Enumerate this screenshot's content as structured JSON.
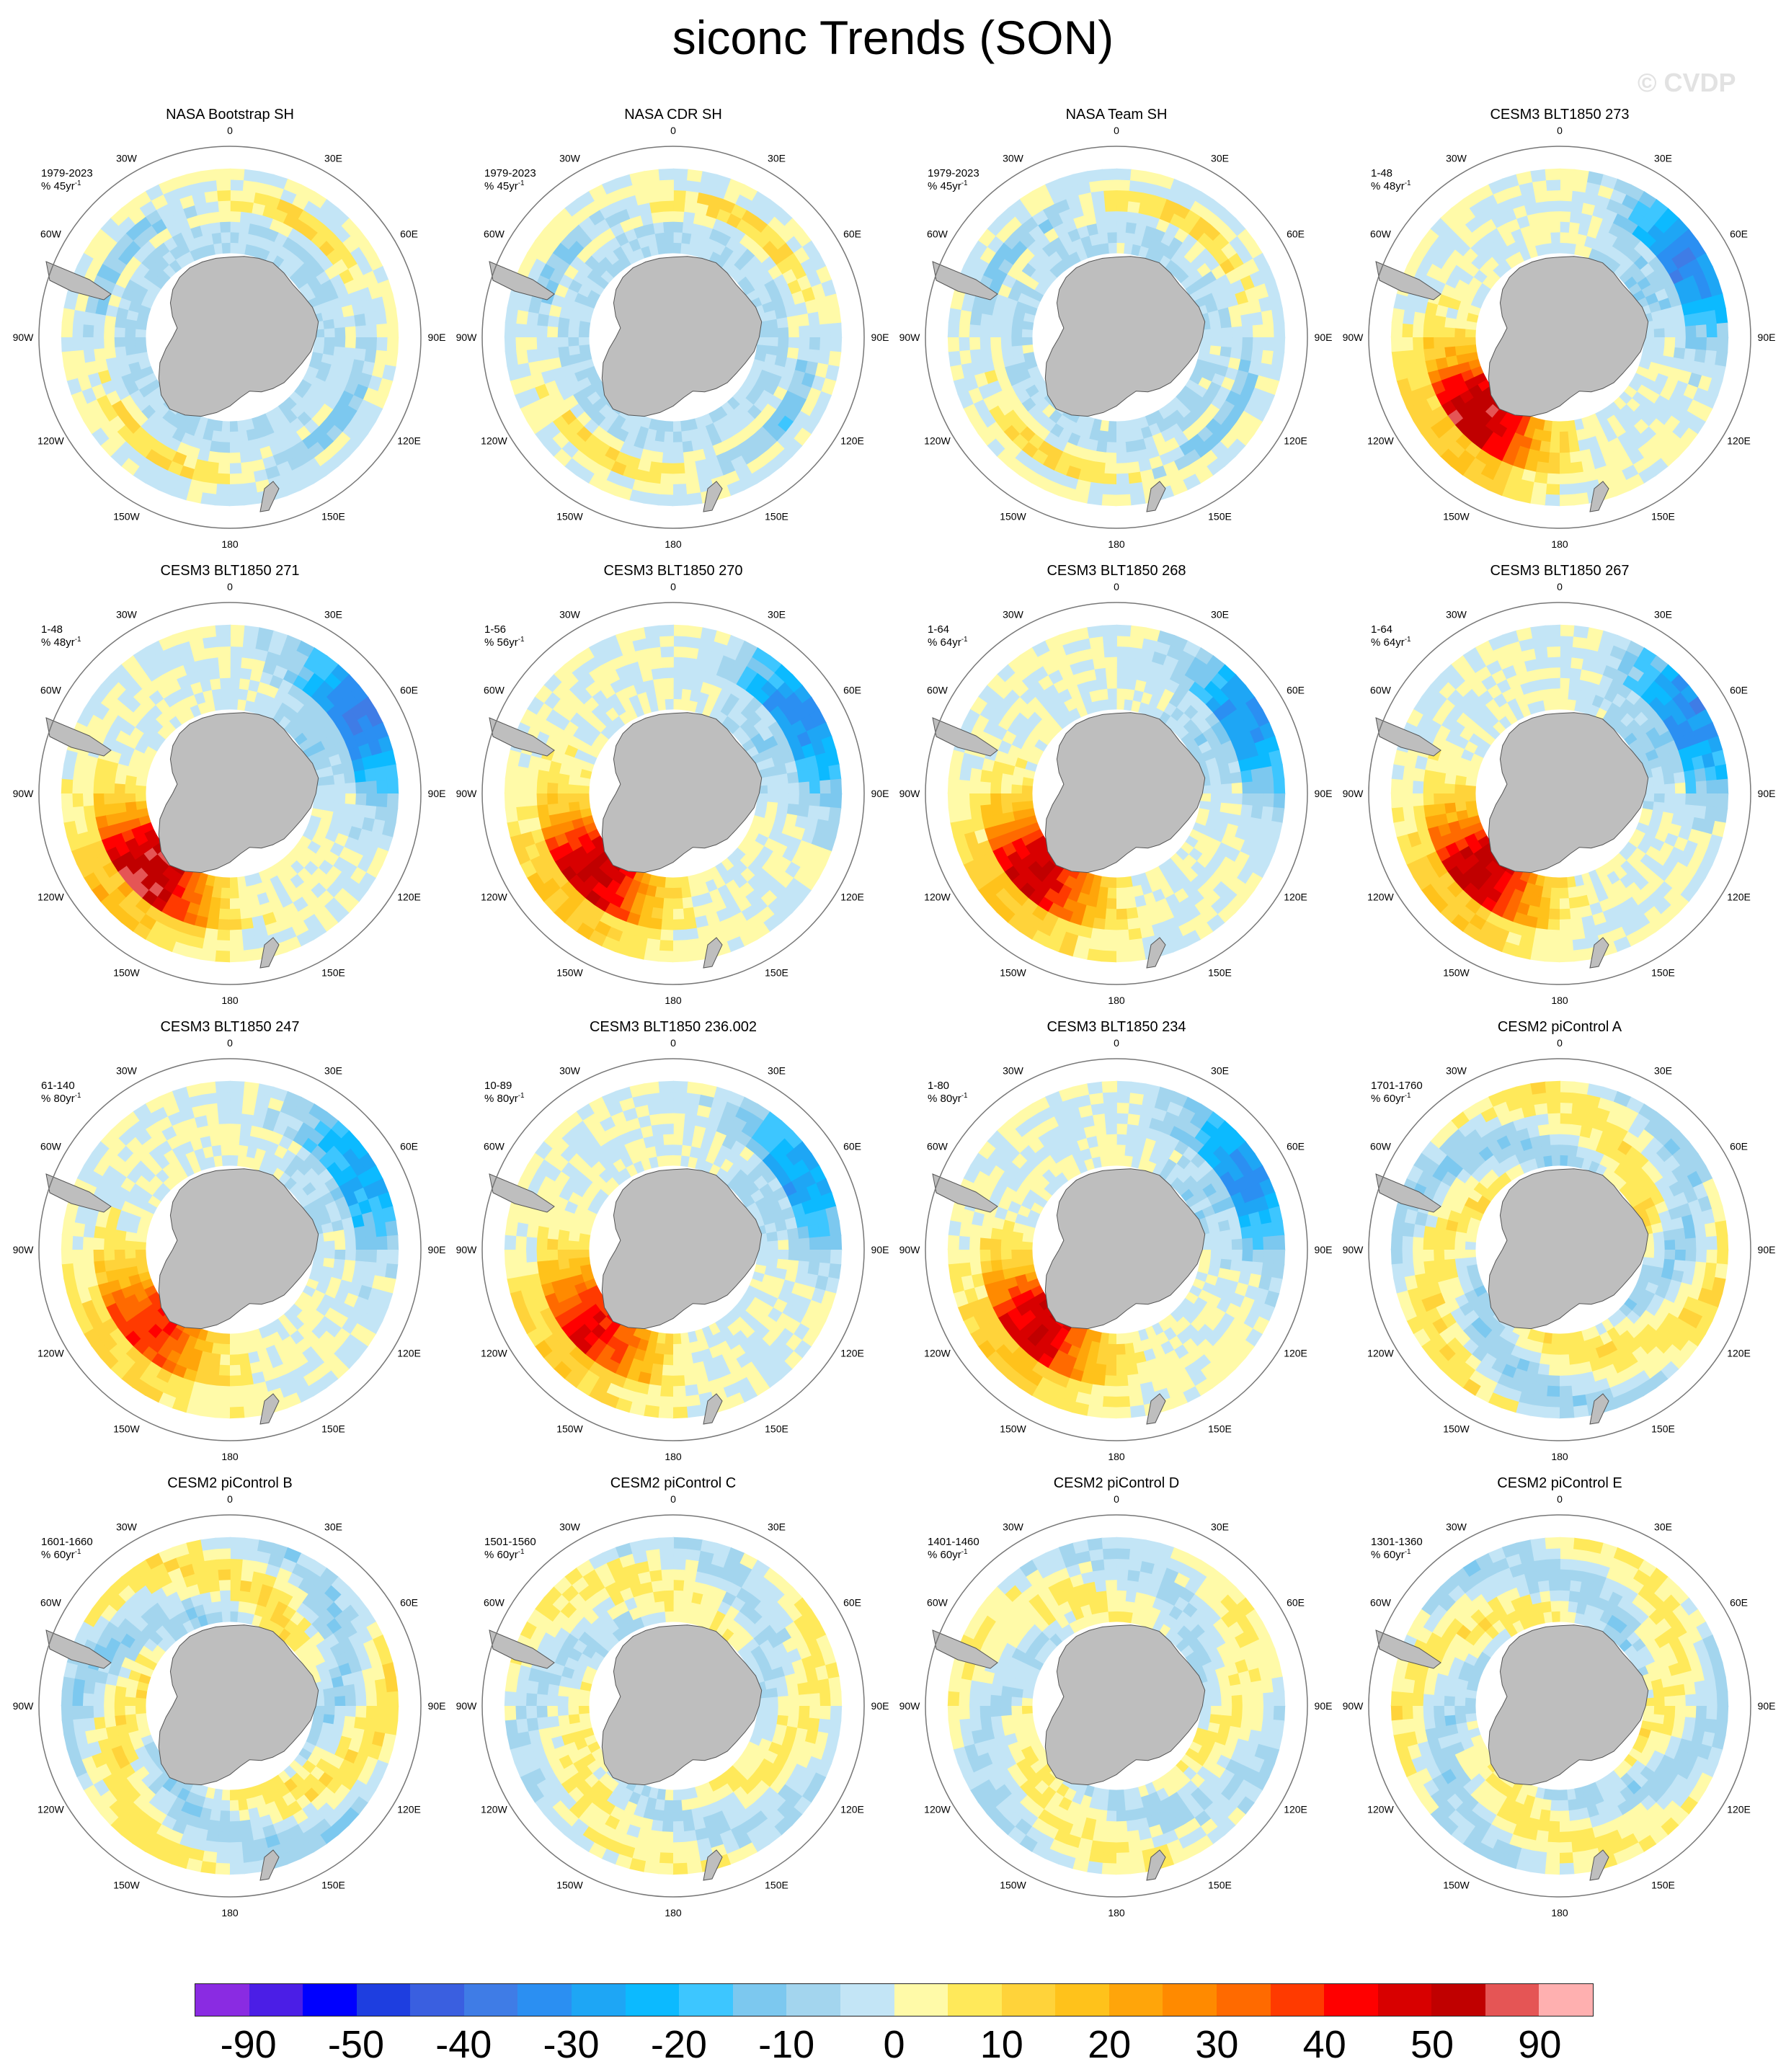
{
  "title": "siconc Trends (SON)",
  "watermark": "© CVDP",
  "lon_labels": [
    "0",
    "30E",
    "60E",
    "90E",
    "120E",
    "150E",
    "180",
    "150W",
    "120W",
    "90W",
    "60W",
    "30W"
  ],
  "panels": [
    {
      "title": "NASA Bootstrap SH",
      "period": "1979-2023",
      "units": "% 45yr",
      "units_sup": "-1",
      "pattern": "obs",
      "amp": 1.0
    },
    {
      "title": "NASA CDR SH",
      "period": "1979-2023",
      "units": "% 45yr",
      "units_sup": "-1",
      "pattern": "obs",
      "amp": 1.0
    },
    {
      "title": "NASA Team SH",
      "period": "1979-2023",
      "units": "% 45yr",
      "units_sup": "-1",
      "pattern": "obs",
      "amp": 0.9
    },
    {
      "title": "CESM3 BLT1850 273",
      "period": "1-48",
      "units": "% 48yr",
      "units_sup": "-1",
      "pattern": "model",
      "amp": 2.4
    },
    {
      "title": "CESM3 BLT1850 271",
      "period": "1-48",
      "units": "% 48yr",
      "units_sup": "-1",
      "pattern": "model",
      "amp": 2.5
    },
    {
      "title": "CESM3 BLT1850 270",
      "period": "1-56",
      "units": "% 56yr",
      "units_sup": "-1",
      "pattern": "model",
      "amp": 2.3
    },
    {
      "title": "CESM3 BLT1850 268",
      "period": "1-64",
      "units": "% 64yr",
      "units_sup": "-1",
      "pattern": "model",
      "amp": 2.2
    },
    {
      "title": "CESM3 BLT1850 267",
      "period": "1-64",
      "units": "% 64yr",
      "units_sup": "-1",
      "pattern": "model",
      "amp": 2.3
    },
    {
      "title": "CESM3 BLT1850 247",
      "period": "61-140",
      "units": "% 80yr",
      "units_sup": "-1",
      "pattern": "model2",
      "amp": 1.8
    },
    {
      "title": "CESM3 BLT1850 236.002",
      "period": "10-89",
      "units": "% 80yr",
      "units_sup": "-1",
      "pattern": "model",
      "amp": 1.9
    },
    {
      "title": "CESM3 BLT1850 234",
      "period": "1-80",
      "units": "% 80yr",
      "units_sup": "-1",
      "pattern": "model",
      "amp": 2.2
    },
    {
      "title": "CESM2 piControl A",
      "period": "1701-1760",
      "units": "% 60yr",
      "units_sup": "-1",
      "pattern": "pi",
      "amp": 1.2
    },
    {
      "title": "CESM2 piControl B",
      "period": "1601-1660",
      "units": "% 60yr",
      "units_sup": "-1",
      "pattern": "pi",
      "amp": 1.2
    },
    {
      "title": "CESM2 piControl C",
      "period": "1501-1560",
      "units": "% 60yr",
      "units_sup": "-1",
      "pattern": "pi",
      "amp": 0.8
    },
    {
      "title": "CESM2 piControl D",
      "period": "1401-1460",
      "units": "% 60yr",
      "units_sup": "-1",
      "pattern": "pi",
      "amp": 0.8
    },
    {
      "title": "CESM2 piControl E",
      "period": "1301-1360",
      "units": "% 60yr",
      "units_sup": "-1",
      "pattern": "pi",
      "amp": 1.0
    }
  ],
  "colorbar": {
    "colors": [
      "#8a2be2",
      "#4b1ee6",
      "#0000ff",
      "#1e3ee0",
      "#3a5fe0",
      "#3f7ce6",
      "#2b8ff2",
      "#1ea6f5",
      "#0cbaff",
      "#3dc6ff",
      "#7cc8ef",
      "#a3d5ee",
      "#c3e5f6",
      "#fffaa8",
      "#ffe95a",
      "#ffd33a",
      "#ffc21b",
      "#ffa50a",
      "#ff8a00",
      "#ff6a00",
      "#ff3a00",
      "#ff0000",
      "#d80000",
      "#c00000",
      "#e55555",
      "#ffb0b0"
    ],
    "labels": [
      "-90",
      "-50",
      "-40",
      "-30",
      "-20",
      "-10",
      "0",
      "10",
      "20",
      "30",
      "40",
      "50",
      "90"
    ]
  }
}
